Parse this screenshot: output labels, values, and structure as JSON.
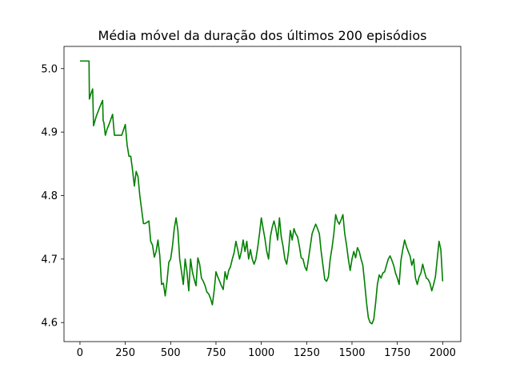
{
  "chart_data": {
    "type": "line",
    "title": "Média móvel da duração dos últimos 200 episódios",
    "xlabel": "",
    "ylabel": "",
    "xlim": [
      -88,
      2100
    ],
    "ylim": [
      4.57,
      5.035
    ],
    "xticks": [
      0,
      250,
      500,
      750,
      1000,
      1250,
      1500,
      1750,
      2000
    ],
    "xtick_labels": [
      "0",
      "250",
      "500",
      "750",
      "1000",
      "1250",
      "1500",
      "1750",
      "2000"
    ],
    "yticks": [
      4.6,
      4.7,
      4.8,
      4.9,
      5.0
    ],
    "ytick_labels": [
      "4.6",
      "4.7",
      "4.8",
      "4.9",
      "5.0"
    ],
    "grid": false,
    "legend": "none",
    "series": [
      {
        "name": "",
        "color": "#008000",
        "x": [
          0,
          50,
          52,
          60,
          70,
          75,
          90,
          110,
          125,
          128,
          132,
          140,
          150,
          160,
          180,
          190,
          200,
          210,
          230,
          250,
          260,
          270,
          280,
          290,
          300,
          310,
          320,
          330,
          340,
          350,
          360,
          370,
          380,
          390,
          400,
          410,
          420,
          430,
          440,
          450,
          460,
          470,
          480,
          490,
          500,
          510,
          520,
          530,
          540,
          550,
          560,
          570,
          580,
          590,
          600,
          610,
          620,
          630,
          640,
          650,
          660,
          670,
          680,
          690,
          700,
          710,
          720,
          730,
          740,
          750,
          760,
          770,
          780,
          790,
          800,
          810,
          820,
          830,
          840,
          850,
          860,
          870,
          880,
          890,
          900,
          910,
          920,
          930,
          940,
          950,
          960,
          970,
          980,
          990,
          1000,
          1010,
          1020,
          1030,
          1040,
          1050,
          1060,
          1070,
          1080,
          1090,
          1100,
          1110,
          1120,
          1130,
          1140,
          1150,
          1160,
          1170,
          1180,
          1190,
          1200,
          1210,
          1220,
          1230,
          1240,
          1250,
          1260,
          1270,
          1280,
          1290,
          1300,
          1310,
          1320,
          1330,
          1340,
          1350,
          1360,
          1370,
          1380,
          1390,
          1400,
          1410,
          1420,
          1430,
          1440,
          1450,
          1460,
          1470,
          1480,
          1490,
          1500,
          1510,
          1520,
          1530,
          1540,
          1550,
          1560,
          1570,
          1580,
          1590,
          1600,
          1610,
          1620,
          1630,
          1640,
          1650,
          1660,
          1670,
          1680,
          1690,
          1700,
          1710,
          1720,
          1730,
          1740,
          1750,
          1760,
          1770,
          1780,
          1790,
          1800,
          1810,
          1820,
          1830,
          1840,
          1850,
          1860,
          1870,
          1880,
          1890,
          1900,
          1910,
          1920,
          1930,
          1940,
          1950,
          1960,
          1970,
          1980,
          1990,
          2000
        ],
        "y": [
          5.012,
          5.012,
          4.952,
          4.96,
          4.968,
          4.91,
          4.925,
          4.94,
          4.95,
          4.918,
          4.915,
          4.895,
          4.905,
          4.912,
          4.928,
          4.895,
          4.895,
          4.895,
          4.895,
          4.912,
          4.88,
          4.862,
          4.862,
          4.84,
          4.815,
          4.838,
          4.83,
          4.8,
          4.778,
          4.756,
          4.756,
          4.758,
          4.76,
          4.728,
          4.722,
          4.703,
          4.712,
          4.73,
          4.706,
          4.66,
          4.662,
          4.642,
          4.665,
          4.695,
          4.7,
          4.72,
          4.748,
          4.765,
          4.745,
          4.7,
          4.68,
          4.66,
          4.7,
          4.68,
          4.65,
          4.7,
          4.68,
          4.668,
          4.658,
          4.702,
          4.692,
          4.67,
          4.665,
          4.658,
          4.648,
          4.645,
          4.638,
          4.628,
          4.65,
          4.68,
          4.672,
          4.665,
          4.658,
          4.652,
          4.68,
          4.668,
          4.682,
          4.688,
          4.7,
          4.71,
          4.728,
          4.715,
          4.7,
          4.712,
          4.73,
          4.712,
          4.728,
          4.7,
          4.715,
          4.7,
          4.692,
          4.7,
          4.718,
          4.74,
          4.765,
          4.748,
          4.732,
          4.712,
          4.7,
          4.735,
          4.75,
          4.76,
          4.748,
          4.73,
          4.765,
          4.735,
          4.72,
          4.7,
          4.692,
          4.712,
          4.745,
          4.73,
          4.748,
          4.74,
          4.735,
          4.72,
          4.702,
          4.7,
          4.688,
          4.682,
          4.7,
          4.72,
          4.74,
          4.748,
          4.755,
          4.748,
          4.74,
          4.712,
          4.69,
          4.668,
          4.665,
          4.672,
          4.7,
          4.718,
          4.74,
          4.77,
          4.76,
          4.755,
          4.762,
          4.77,
          4.74,
          4.722,
          4.7,
          4.682,
          4.7,
          4.712,
          4.702,
          4.718,
          4.712,
          4.7,
          4.69,
          4.662,
          4.632,
          4.608,
          4.6,
          4.598,
          4.605,
          4.63,
          4.66,
          4.675,
          4.67,
          4.678,
          4.68,
          4.69,
          4.7,
          4.705,
          4.698,
          4.69,
          4.678,
          4.67,
          4.66,
          4.698,
          4.715,
          4.73,
          4.72,
          4.712,
          4.705,
          4.69,
          4.7,
          4.67,
          4.66,
          4.672,
          4.678,
          4.692,
          4.68,
          4.67,
          4.668,
          4.662,
          4.65,
          4.66,
          4.672,
          4.7,
          4.728,
          4.715,
          4.665
        ]
      }
    ]
  }
}
